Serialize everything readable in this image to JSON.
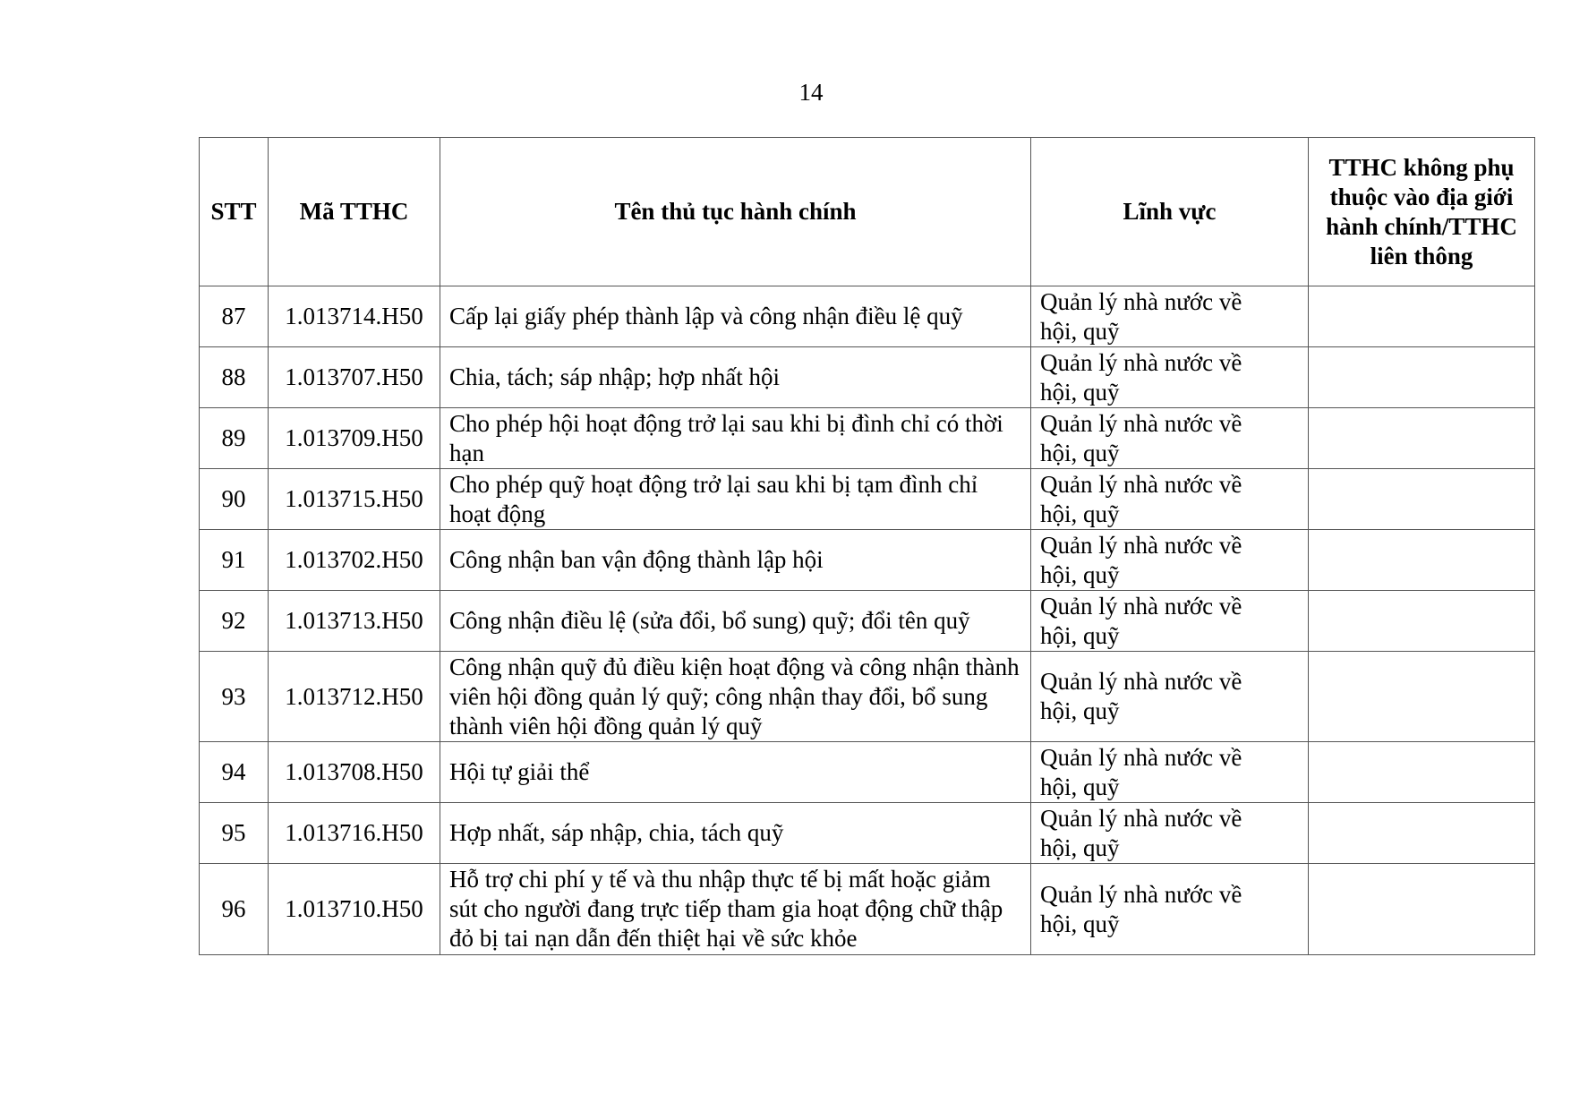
{
  "page_number": "14",
  "table": {
    "headers": [
      "STT",
      "Mã TTHC",
      "Tên thủ tục hành chính",
      "Lĩnh vực",
      "TTHC không phụ thuộc vào địa giới hành chính/TTHC liên thông"
    ],
    "rows": [
      {
        "stt": "87",
        "code": "1.013714.H50",
        "name": "Cấp lại giấy phép thành lập và công nhận điều lệ quỹ",
        "field": "Quản lý nhà nước về hội, quỹ",
        "extra": ""
      },
      {
        "stt": "88",
        "code": "1.013707.H50",
        "name": "Chia, tách; sáp nhập; hợp nhất hội",
        "field": "Quản lý nhà nước về hội, quỹ",
        "extra": ""
      },
      {
        "stt": "89",
        "code": "1.013709.H50",
        "name": "Cho phép hội hoạt động trở lại sau khi bị đình chỉ có thời hạn",
        "field": "Quản lý nhà nước về hội, quỹ",
        "extra": ""
      },
      {
        "stt": "90",
        "code": "1.013715.H50",
        "name": "Cho phép quỹ hoạt động trở lại sau khi bị tạm đình chỉ hoạt động",
        "field": "Quản lý nhà nước về hội, quỹ",
        "extra": ""
      },
      {
        "stt": "91",
        "code": "1.013702.H50",
        "name": "Công nhận ban vận động thành lập hội",
        "field": "Quản lý nhà nước về hội, quỹ",
        "extra": ""
      },
      {
        "stt": "92",
        "code": "1.013713.H50",
        "name": "Công nhận điều lệ (sửa đổi, bổ sung) quỹ; đổi tên quỹ",
        "field": "Quản lý nhà nước về hội, quỹ",
        "extra": ""
      },
      {
        "stt": "93",
        "code": "1.013712.H50",
        "name": "Công nhận quỹ đủ điều kiện hoạt động và công nhận thành viên hội đồng quản lý quỹ; công nhận thay đổi, bổ sung thành viên hội đồng quản lý quỹ",
        "field": "Quản lý nhà nước về hội, quỹ",
        "extra": ""
      },
      {
        "stt": "94",
        "code": "1.013708.H50",
        "name": "Hội tự giải thể",
        "field": "Quản lý nhà nước về hội, quỹ",
        "extra": ""
      },
      {
        "stt": "95",
        "code": "1.013716.H50",
        "name": "Hợp nhất, sáp nhập, chia, tách quỹ",
        "field": "Quản lý nhà nước về hội, quỹ",
        "extra": ""
      },
      {
        "stt": "96",
        "code": "1.013710.H50",
        "name": "Hỗ trợ chi phí y tế và thu nhập thực tế bị mất hoặc giảm sút cho người đang trực tiếp tham gia hoạt động chữ thập đỏ bị tai nạn dẫn đến thiệt hại về sức khỏe",
        "field": "Quản lý nhà nước về hội, quỹ",
        "extra": ""
      }
    ]
  }
}
